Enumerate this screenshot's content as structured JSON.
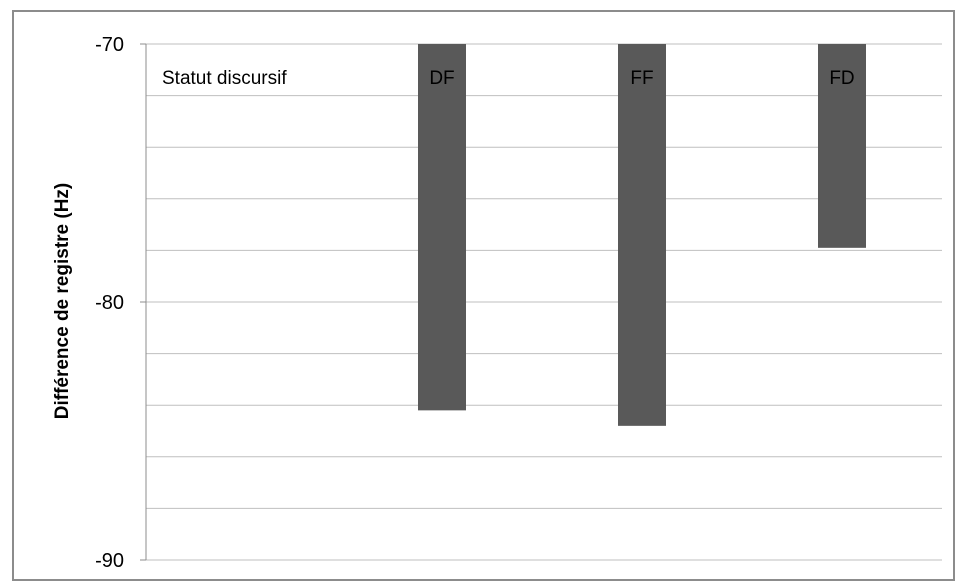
{
  "chart_data": {
    "type": "bar",
    "title": "",
    "xlabel": "",
    "ylabel": "Différence de registre (Hz)",
    "annotation": "Statut discursif",
    "categories": [
      "DF",
      "FF",
      "FD"
    ],
    "values": [
      -84.2,
      -84.8,
      -77.9
    ],
    "ylim": [
      -90,
      -70
    ],
    "yticks": [
      -70,
      -80,
      -90
    ],
    "grid": true,
    "bar_color": "#595959",
    "grid_color": "#bfbfbf"
  }
}
